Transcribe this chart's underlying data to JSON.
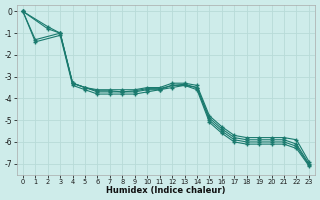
{
  "title": "",
  "xlabel": "Humidex (Indice chaleur)",
  "ylabel": "",
  "bg_color": "#ceecea",
  "grid_color": "#b8dbd8",
  "line_color": "#1a7a6e",
  "xlim": [
    -0.5,
    23.5
  ],
  "ylim": [
    -7.5,
    0.3
  ],
  "yticks": [
    0,
    -1,
    -2,
    -3,
    -4,
    -5,
    -6,
    -7
  ],
  "xticks": [
    0,
    1,
    2,
    3,
    4,
    5,
    6,
    7,
    8,
    9,
    10,
    11,
    12,
    13,
    14,
    15,
    16,
    17,
    18,
    19,
    20,
    21,
    22,
    23
  ],
  "series": [
    {
      "x": [
        0,
        2,
        3,
        4,
        5,
        6,
        7,
        8,
        9,
        10,
        11,
        12,
        13,
        14,
        15,
        16,
        17,
        18,
        19,
        20,
        21,
        22,
        23
      ],
      "y": [
        0.0,
        -0.7,
        -1.0,
        -3.3,
        -3.5,
        -3.6,
        -3.6,
        -3.6,
        -3.6,
        -3.5,
        -3.5,
        -3.3,
        -3.3,
        -3.4,
        -4.8,
        -5.3,
        -5.7,
        -5.8,
        -5.8,
        -5.8,
        -5.8,
        -5.9,
        -6.9
      ]
    },
    {
      "x": [
        0,
        2,
        3,
        4,
        5,
        6,
        7,
        8,
        9,
        10,
        11,
        12,
        13,
        14,
        15,
        16,
        17,
        18,
        19,
        20,
        21,
        22,
        23
      ],
      "y": [
        0.0,
        -0.8,
        -1.0,
        -3.3,
        -3.5,
        -3.65,
        -3.65,
        -3.7,
        -3.65,
        -3.55,
        -3.55,
        -3.4,
        -3.35,
        -3.5,
        -4.9,
        -5.4,
        -5.8,
        -5.9,
        -5.9,
        -5.9,
        -5.9,
        -6.1,
        -7.0
      ]
    },
    {
      "x": [
        0,
        1,
        3,
        4,
        5,
        6,
        7,
        8,
        9,
        10,
        11,
        12,
        13,
        14,
        15,
        16,
        17,
        18,
        19,
        20,
        21,
        22,
        23
      ],
      "y": [
        0.0,
        -1.3,
        -1.0,
        -3.3,
        -3.5,
        -3.7,
        -3.7,
        -3.7,
        -3.7,
        -3.6,
        -3.6,
        -3.4,
        -3.4,
        -3.5,
        -5.0,
        -5.5,
        -5.9,
        -6.0,
        -6.0,
        -6.0,
        -6.0,
        -6.2,
        -7.05
      ]
    },
    {
      "x": [
        0,
        1,
        3,
        4,
        5,
        6,
        7,
        8,
        9,
        10,
        11,
        12,
        13,
        14,
        15,
        16,
        17,
        18,
        19,
        20,
        21,
        22,
        23
      ],
      "y": [
        0.0,
        -1.4,
        -1.1,
        -3.4,
        -3.6,
        -3.8,
        -3.8,
        -3.8,
        -3.8,
        -3.7,
        -3.6,
        -3.5,
        -3.4,
        -3.6,
        -5.1,
        -5.6,
        -6.0,
        -6.1,
        -6.1,
        -6.1,
        -6.1,
        -6.3,
        -7.1
      ]
    }
  ]
}
